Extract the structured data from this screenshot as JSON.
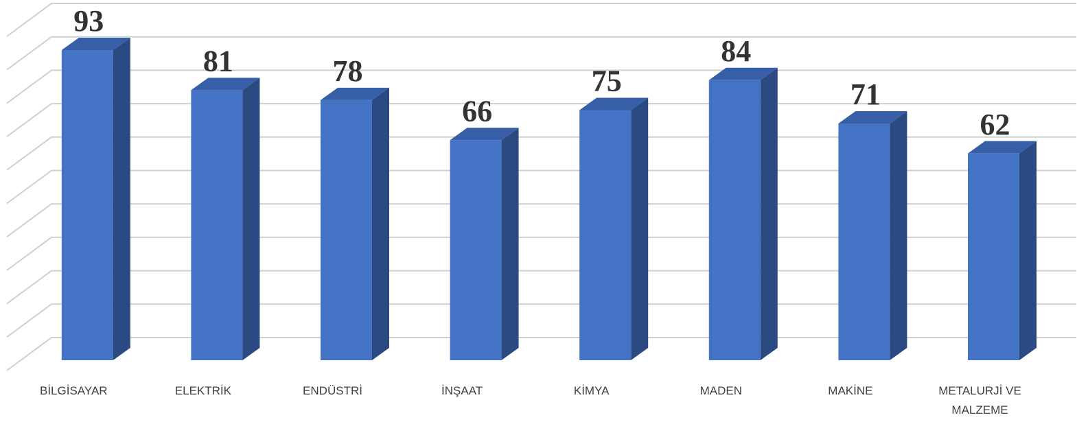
{
  "chart_data": {
    "type": "bar3d",
    "categories": [
      "BİLGİSAYAR",
      "ELEKTRİK",
      "ENDÜSTRİ",
      "İNŞAAT",
      "KİMYA",
      "MADEN",
      "MAKİNE",
      "METALURJİ VE MALZEME"
    ],
    "values": [
      93,
      81,
      78,
      66,
      75,
      84,
      71,
      62
    ],
    "color": "#4472c4",
    "ylim": [
      0,
      100
    ],
    "yticks": [
      0,
      10,
      20,
      30,
      40,
      50,
      60,
      70,
      80,
      90,
      100
    ],
    "grid": true
  }
}
